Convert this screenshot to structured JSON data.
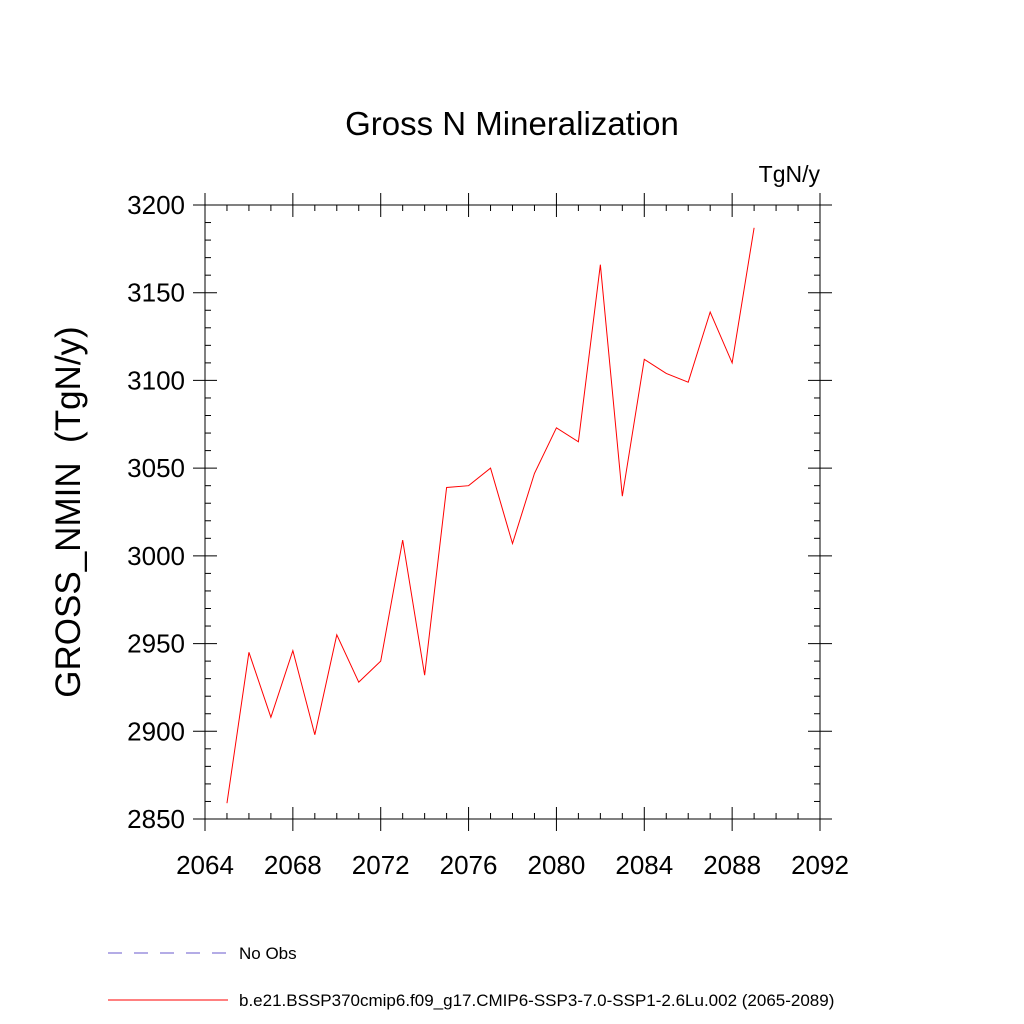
{
  "chart_data": {
    "type": "line",
    "title": "Gross N Mineralization",
    "units_label": "TgN/y",
    "ylabel": "GROSS_NMIN  (TgN/y)",
    "xlabel": "",
    "xlim": [
      2064,
      2092
    ],
    "ylim": [
      2850,
      3200
    ],
    "x_ticks": [
      "2064",
      "2068",
      "2072",
      "2076",
      "2080",
      "2084",
      "2088",
      "2092"
    ],
    "y_ticks": [
      "2850",
      "2900",
      "2950",
      "3000",
      "3050",
      "3100",
      "3150",
      "3200"
    ],
    "x_major_step": 4,
    "x_minor_step": 1,
    "y_major_step": 50,
    "y_minor_step": 10,
    "grid": false,
    "series": [
      {
        "name": "b.e21.BSSP370cmip6.f09_g17.CMIP6-SSP3-7.0-SSP1-2.6Lu.002 (2065-2089)",
        "color": "#ff0000",
        "x": [
          2065,
          2066,
          2067,
          2068,
          2069,
          2070,
          2071,
          2072,
          2073,
          2074,
          2075,
          2076,
          2077,
          2078,
          2079,
          2080,
          2081,
          2082,
          2083,
          2084,
          2085,
          2086,
          2087,
          2088,
          2089
        ],
        "values": [
          2859,
          2945,
          2908,
          2946,
          2898,
          2955,
          2928,
          2940,
          3009,
          2932,
          3039,
          3040,
          3050,
          3007,
          3047,
          3073,
          3065,
          3166,
          3034,
          3112,
          3104,
          3099,
          3139,
          3110,
          3187
        ]
      }
    ],
    "legend": [
      {
        "label": "No Obs",
        "color": "#6a5acd",
        "style": "dashed"
      },
      {
        "label": "b.e21.BSSP370cmip6.f09_g17.CMIP6-SSP3-7.0-SSP1-2.6Lu.002 (2065-2089)",
        "color": "#ff0000",
        "style": "solid"
      }
    ],
    "legend_position": "bottom-left"
  }
}
